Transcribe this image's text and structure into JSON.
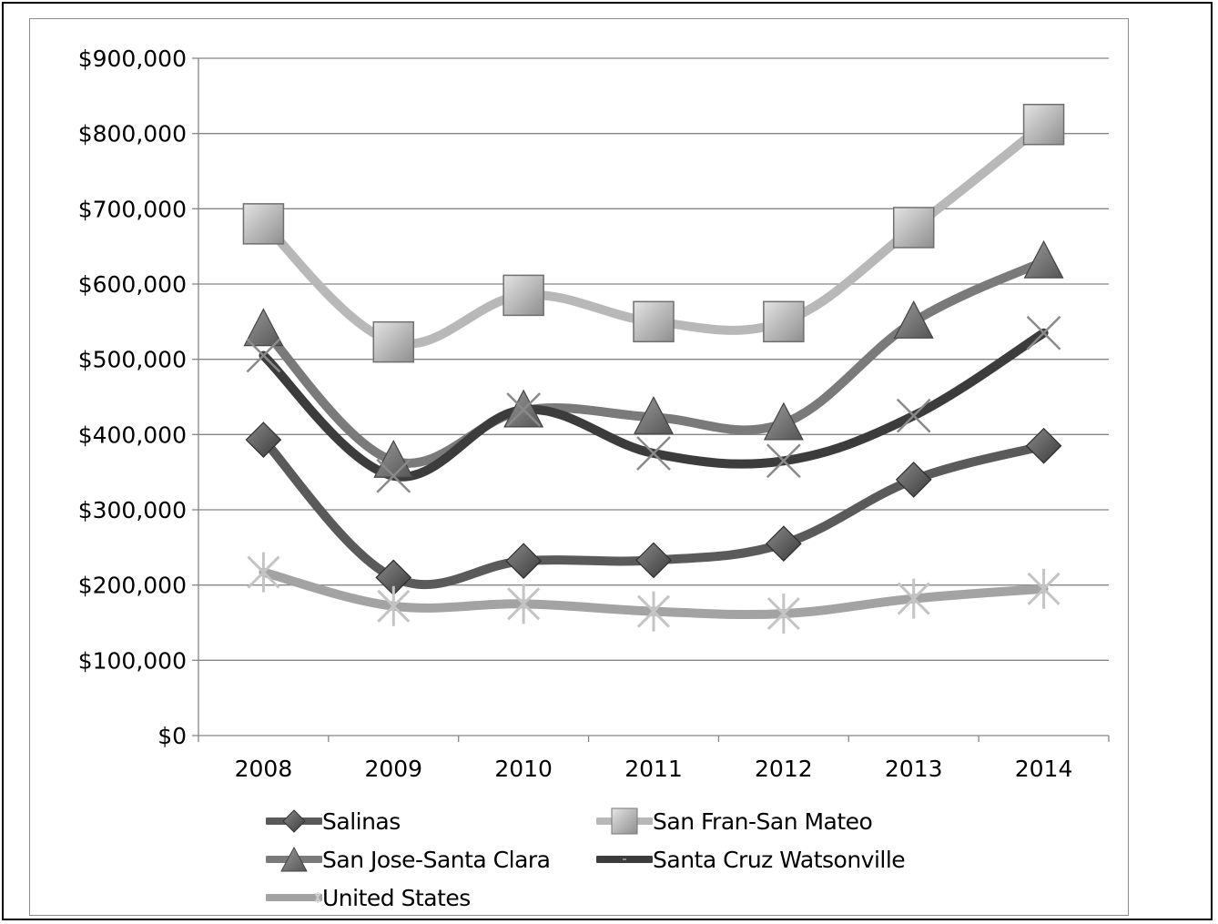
{
  "chart_data": {
    "type": "line",
    "title": "",
    "xlabel": "",
    "ylabel": "",
    "categories": [
      "2008",
      "2009",
      "2010",
      "2011",
      "2012",
      "2013",
      "2014"
    ],
    "ylim": [
      0,
      900000
    ],
    "yticks": [
      0,
      100000,
      200000,
      300000,
      400000,
      500000,
      600000,
      700000,
      800000,
      900000
    ],
    "ytick_labels": [
      "$0",
      "$100,000",
      "$200,000",
      "$300,000",
      "$400,000",
      "$500,000",
      "$600,000",
      "$700,000",
      "$800,000",
      "$900,000"
    ],
    "grid": true,
    "legend_position": "bottom",
    "series": [
      {
        "name": "San Fran-San Mateo",
        "values": [
          680000,
          523000,
          585000,
          550000,
          550000,
          675000,
          812000
        ],
        "color": "#b8b8b8",
        "marker": "square"
      },
      {
        "name": "San Jose-Santa Clara",
        "values": [
          540000,
          365000,
          432000,
          423000,
          415000,
          550000,
          630000
        ],
        "color": "#7a7a7a",
        "marker": "triangle"
      },
      {
        "name": "Santa Cruz Watsonville",
        "values": [
          505000,
          345000,
          433000,
          375000,
          365000,
          425000,
          535000
        ],
        "color": "#3c3c3c",
        "marker": "x"
      },
      {
        "name": "Salinas",
        "values": [
          393000,
          210000,
          232000,
          233000,
          255000,
          340000,
          385000
        ],
        "color": "#5a5a5a",
        "marker": "diamond"
      },
      {
        "name": "United States",
        "values": [
          217000,
          172000,
          175000,
          165000,
          162000,
          182000,
          195000
        ],
        "color": "#a3a3a3",
        "marker": "star"
      }
    ]
  },
  "legend": {
    "salinas": "Salinas",
    "san_fran": "San Fran-San Mateo",
    "san_jose": "San Jose-Santa Clara",
    "santa_cruz": "Santa Cruz Watsonville",
    "united_states": "United States"
  }
}
